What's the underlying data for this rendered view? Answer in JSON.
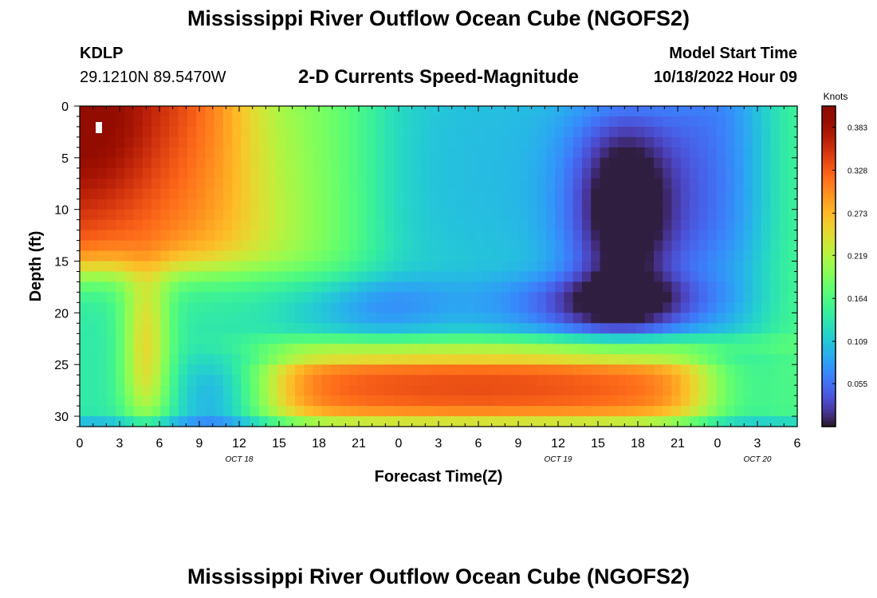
{
  "header": {
    "title": "Mississippi River Outflow Ocean Cube (NGOFS2)",
    "station_id": "KDLP",
    "coordinates": "29.1210N  89.5470W",
    "plot_title": "2-D Currents Speed-Magnitude",
    "model_start_label": "Model Start Time",
    "model_start_value": "10/18/2022 Hour 09"
  },
  "footer": {
    "title": "Mississippi River Outflow Ocean Cube (NGOFS2)"
  },
  "chart_data": {
    "type": "heatmap",
    "xlabel": "Forecast Time(Z)",
    "ylabel": "Depth (ft)",
    "x_range": [
      0,
      54
    ],
    "y_range": [
      0,
      31
    ],
    "y_inverted": true,
    "x_tick_values": [
      0,
      3,
      6,
      9,
      12,
      15,
      18,
      21,
      24,
      27,
      30,
      33,
      36,
      39,
      42,
      45,
      48,
      51,
      54
    ],
    "x_tick_labels": [
      "0",
      "3",
      "6",
      "9",
      "12",
      "15",
      "18",
      "21",
      "0",
      "3",
      "6",
      "9",
      "12",
      "15",
      "18",
      "21",
      "0",
      "3",
      "6"
    ],
    "y_tick_values": [
      0,
      5,
      10,
      15,
      20,
      25,
      30
    ],
    "y_tick_labels": [
      "0",
      "5",
      "10",
      "15",
      "20",
      "25",
      "30"
    ],
    "date_labels": [
      {
        "x": 12,
        "text": "OCT 18"
      },
      {
        "x": 36,
        "text": "OCT 19"
      },
      {
        "x": 51,
        "text": "OCT 20"
      }
    ],
    "colorbar": {
      "unit": "Knots",
      "min": 0.0,
      "max": 0.41,
      "tick_values": [
        0.383,
        0.328,
        0.273,
        0.219,
        0.164,
        0.109,
        0.055
      ],
      "tick_labels": [
        "0.383",
        "0.328",
        "0.273",
        "0.219",
        "0.164",
        "0.109",
        "0.055"
      ],
      "colormap": "turbo"
    },
    "speed_features": [
      {
        "region": "surface-early",
        "time": [
          0,
          15
        ],
        "depth": [
          0,
          17
        ],
        "peak_knots": 0.39
      },
      {
        "region": "mid-depth-slow-band",
        "time": [
          20,
          50
        ],
        "depth": [
          17,
          22
        ],
        "min_knots": 0.04
      },
      {
        "region": "slow-core",
        "time": [
          36,
          45
        ],
        "depth": [
          5,
          18
        ],
        "min_knots": 0.01
      },
      {
        "region": "bottom-fast-band",
        "time": [
          15,
          48
        ],
        "depth": [
          24,
          31
        ],
        "peak_knots": 0.35
      },
      {
        "region": "column-6h",
        "time": [
          3,
          7
        ],
        "depth": [
          18,
          30
        ],
        "peak_knots": 0.27
      }
    ]
  }
}
